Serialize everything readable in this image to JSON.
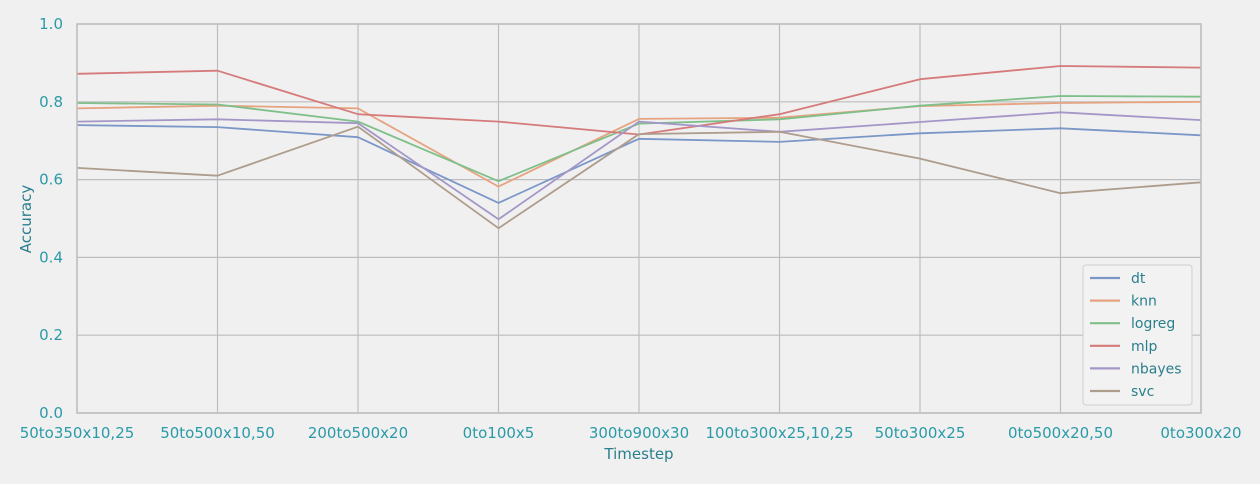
{
  "chart_data": {
    "type": "line",
    "title": "",
    "xlabel": "Timestep",
    "ylabel": "Accuracy",
    "ylim": [
      0.0,
      1.0
    ],
    "yticks": [
      "0.0",
      "0.2",
      "0.4",
      "0.6",
      "0.8",
      "1.0"
    ],
    "grid": true,
    "legend_position": "bottom-right",
    "categories": [
      "50to350x10,25",
      "50to500x10,50",
      "200to500x20",
      "0to100x5",
      "300to900x30",
      "100to300x25,10,25",
      "50to300x25",
      "0to500x20,50",
      "0to300x20"
    ],
    "series": [
      {
        "name": "dt",
        "color": "#7b97c8",
        "values": [
          0.74,
          0.735,
          0.709,
          0.54,
          0.705,
          0.697,
          0.719,
          0.732,
          0.714
        ]
      },
      {
        "name": "knn",
        "color": "#e6a380",
        "values": [
          0.783,
          0.79,
          0.783,
          0.582,
          0.756,
          0.759,
          0.789,
          0.797,
          0.8
        ]
      },
      {
        "name": "logreg",
        "color": "#7fbf8a",
        "values": [
          0.797,
          0.793,
          0.749,
          0.596,
          0.744,
          0.755,
          0.79,
          0.815,
          0.813
        ]
      },
      {
        "name": "mlp",
        "color": "#d67b7b",
        "values": [
          0.872,
          0.88,
          0.768,
          0.749,
          0.716,
          0.768,
          0.858,
          0.892,
          0.888
        ]
      },
      {
        "name": "nbayes",
        "color": "#a497c8",
        "values": [
          0.749,
          0.755,
          0.745,
          0.498,
          0.749,
          0.723,
          0.748,
          0.773,
          0.753
        ]
      },
      {
        "name": "svc",
        "color": "#ae9c8c",
        "values": [
          0.63,
          0.61,
          0.736,
          0.475,
          0.717,
          0.723,
          0.654,
          0.565,
          0.593
        ]
      }
    ]
  }
}
